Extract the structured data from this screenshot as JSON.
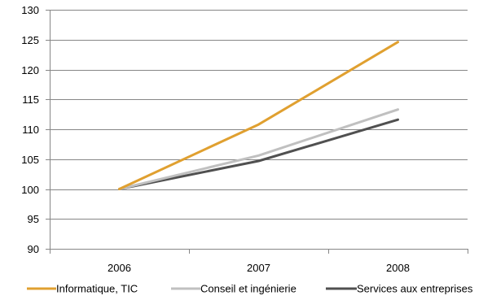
{
  "chart_data": {
    "type": "line",
    "title": "",
    "xlabel": "",
    "ylabel": "",
    "categories": [
      "2006",
      "2007",
      "2008"
    ],
    "ylim": [
      90,
      130
    ],
    "yticks": [
      "90",
      "95",
      "100",
      "105",
      "110",
      "115",
      "120",
      "125",
      "130"
    ],
    "grid": "horizontal",
    "legend_position": "bottom",
    "series": [
      {
        "name": "Informatique, TIC",
        "color": "#E0A030",
        "values": [
          100,
          110.8,
          124.6
        ]
      },
      {
        "name": "Conseil et ingénierie",
        "color": "#C0C0C0",
        "values": [
          100,
          105.6,
          113.3
        ]
      },
      {
        "name": "Services aux entreprises",
        "color": "#505050",
        "values": [
          100,
          104.7,
          111.6
        ]
      }
    ]
  }
}
